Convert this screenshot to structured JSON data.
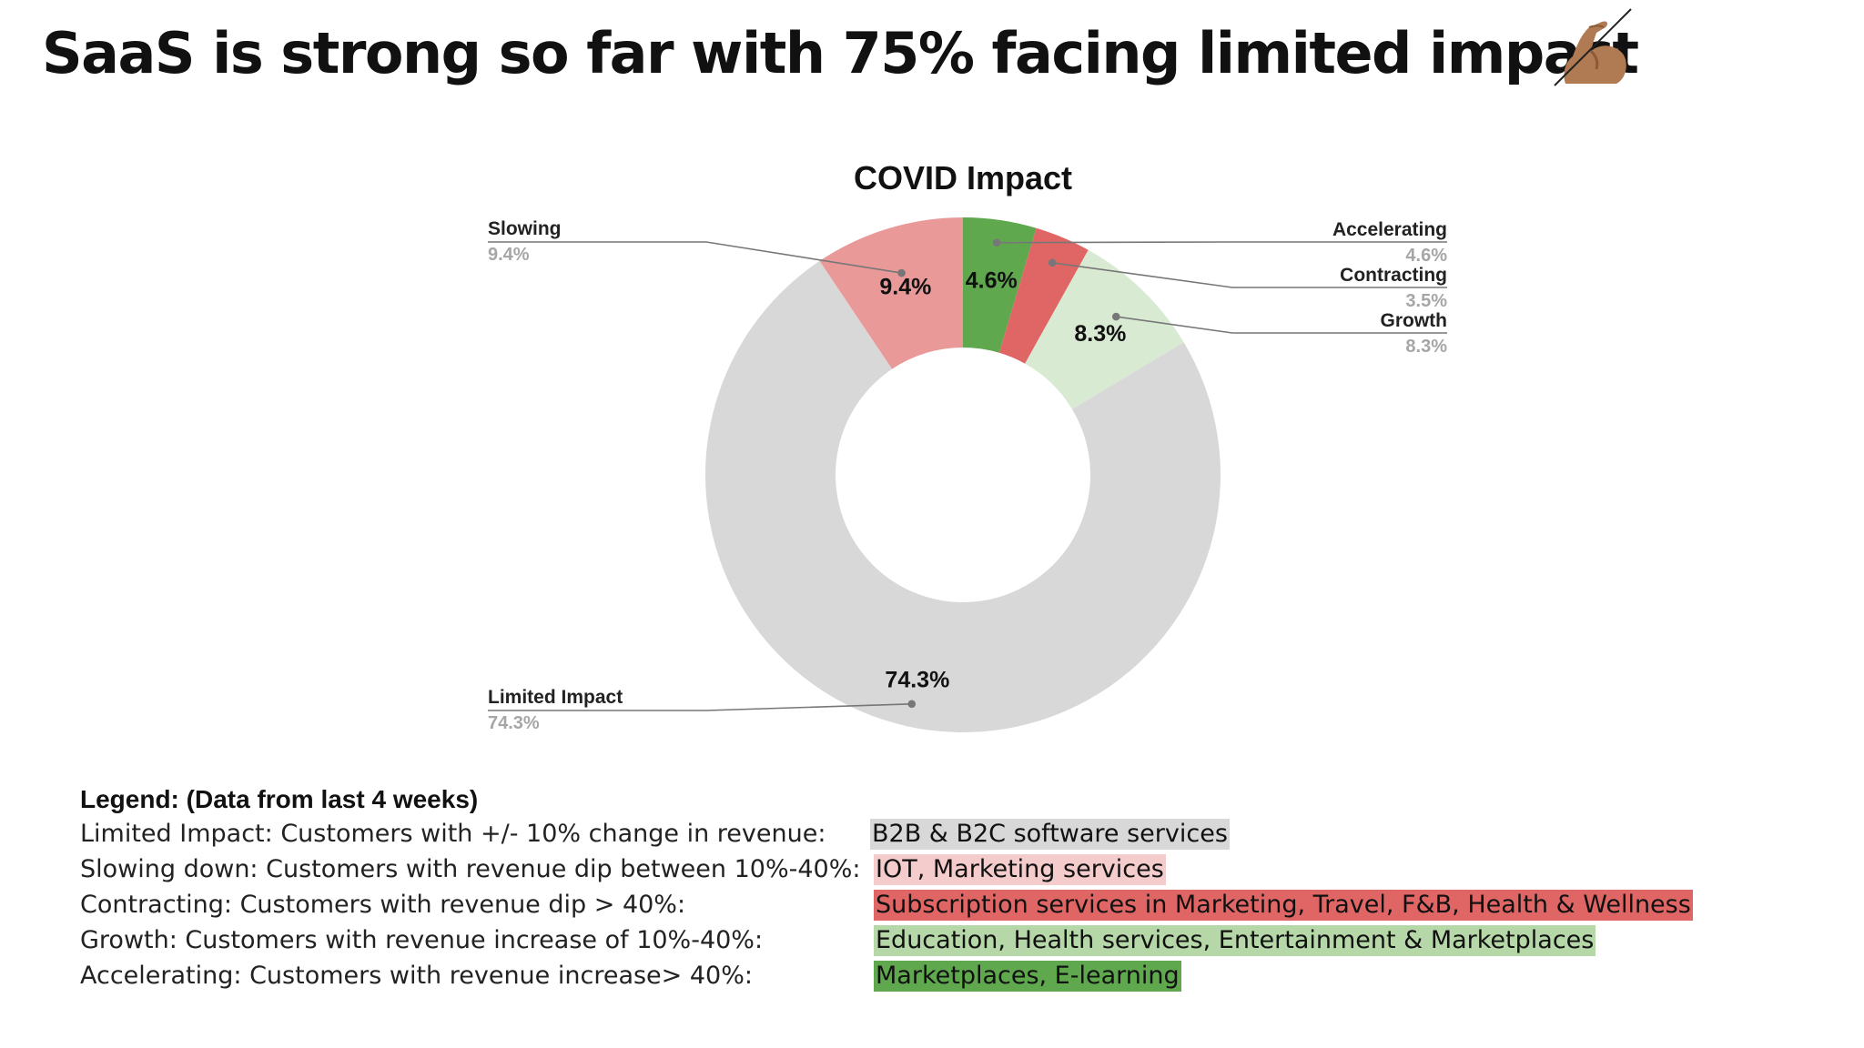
{
  "slide": {
    "title": "SaaS is strong so far with 75% facing limited impact",
    "title_icon": "flexed-biceps-icon"
  },
  "chart_data": {
    "type": "pie",
    "variant": "donut",
    "title": "COVID Impact",
    "start_angle_deg": 0,
    "direction": "clockwise",
    "slices": [
      {
        "name": "Accelerating",
        "value": 4.6,
        "label": "4.6%",
        "color": "#5fa84e"
      },
      {
        "name": "Contracting",
        "value": 3.5,
        "label": "3.5%",
        "color": "#e06666"
      },
      {
        "name": "Growth",
        "value": 8.3,
        "label": "8.3%",
        "color": "#d9ead3"
      },
      {
        "name": "Limited Impact",
        "value": 74.3,
        "label": "74.3%",
        "color": "#d9d8d9"
      },
      {
        "name": "Slowing",
        "value": 9.4,
        "label": "9.4%",
        "color": "#ea9999"
      }
    ],
    "inner_slice_labels": [
      "4.6%",
      "8.3%",
      "74.3%",
      "9.4%"
    ]
  },
  "legend": {
    "heading": "Legend: (Data from last 4 weeks)",
    "rows": [
      {
        "description": "Limited Impact: Customers with +/- 10% change in revenue:",
        "value": "B2B & B2C software services",
        "color": "#d9d8d9"
      },
      {
        "description": "Slowing down: Customers with revenue dip between 10%-40%:",
        "value": "IOT, Marketing services",
        "color": "#f4cccc"
      },
      {
        "description": "Contracting: Customers with revenue dip > 40%:",
        "value": "Subscription services in Marketing, Travel, F&B, Health & Wellness",
        "color": "#e06666"
      },
      {
        "description": "Growth: Customers with revenue increase of 10%-40%:",
        "value": "Education, Health services, Entertainment & Marketplaces",
        "color": "#b6d7a8"
      },
      {
        "description": "Accelerating: Customers with revenue increase> 40%:",
        "value": "Marketplaces, E-learning",
        "color": "#5fa84e"
      }
    ]
  }
}
